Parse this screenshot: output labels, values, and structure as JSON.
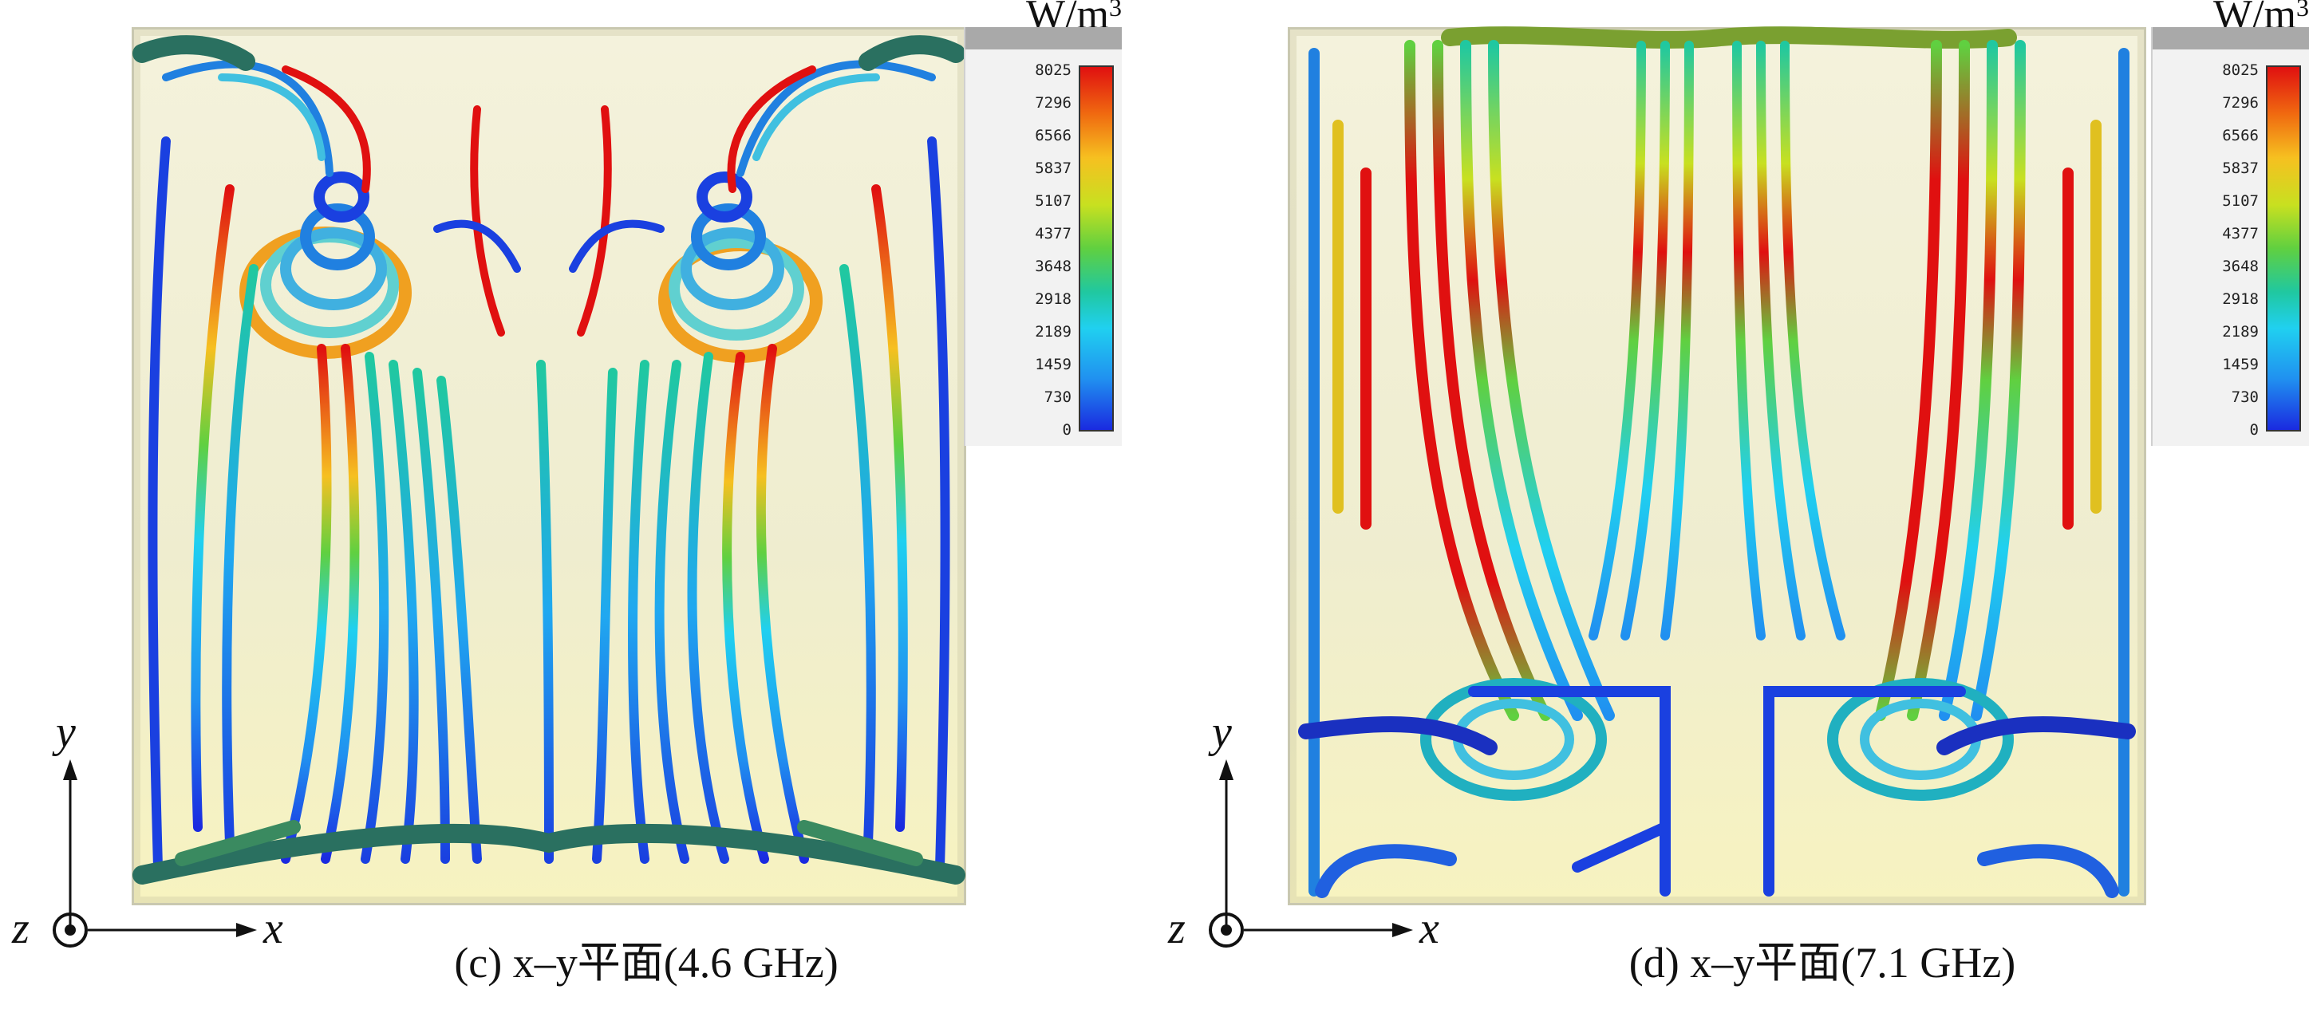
{
  "figure": {
    "panels": [
      {
        "id": "c",
        "caption": "(c) x–y平面(4.6 GHz)",
        "legend": {
          "unit": "W/m",
          "unit_exponent": "3",
          "ticks": [
            "8025",
            "7296",
            "6566",
            "5837",
            "5107",
            "4377",
            "3648",
            "2918",
            "2189",
            "1459",
            "730",
            "0"
          ]
        },
        "axes": {
          "y": "y",
          "z": "z",
          "x": "x"
        }
      },
      {
        "id": "d",
        "caption": "(d) x–y平面(7.1 GHz)",
        "legend": {
          "unit": "W/m",
          "unit_exponent": "3",
          "ticks": [
            "8025",
            "7296",
            "6566",
            "5837",
            "5107",
            "4377",
            "3648",
            "2918",
            "2189",
            "1459",
            "730",
            "0"
          ]
        },
        "axes": {
          "y": "y",
          "z": "z",
          "x": "x"
        }
      }
    ],
    "colormap": [
      "#1a2ae0",
      "#2090f0",
      "#20d0f0",
      "#20c8a0",
      "#60d040",
      "#c8e020",
      "#f6c020",
      "#f06a10",
      "#e01010"
    ]
  }
}
